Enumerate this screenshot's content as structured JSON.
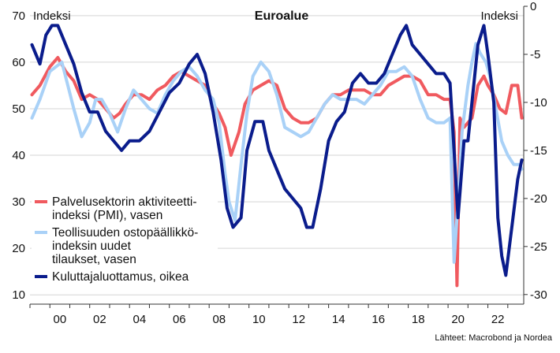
{
  "chart_data": {
    "type": "line",
    "title": "Euroalue",
    "left_axis_label": "Indeksi",
    "right_axis_label": "Indeksi",
    "source": "Lähteet: Macrobond ja Nordea",
    "x_ticks": [
      "00",
      "02",
      "04",
      "06",
      "08",
      "10",
      "12",
      "14",
      "16",
      "18",
      "20",
      "22"
    ],
    "y_left": {
      "ticks": [
        10,
        20,
        30,
        40,
        50,
        60,
        70
      ],
      "lim": [
        8,
        72
      ]
    },
    "y_right": {
      "ticks": [
        -30,
        -25,
        -20,
        -15,
        -10,
        -5,
        0
      ],
      "lim": [
        -31,
        0
      ]
    },
    "xlim": [
      1999.0,
      2023.8
    ],
    "grid": true,
    "legend": "bottom-left",
    "series": [
      {
        "name": "Palvelusektorin aktiviteetti-indeksi (PMI), vasen",
        "legend_lines": [
          "Palvelusektorin aktiviteetti-",
          "indeksi (PMI), vasen"
        ],
        "axis": "left",
        "color": "#f05a5f",
        "x": [
          1999.1,
          1999.5,
          2000.0,
          2000.4,
          2000.8,
          2001.2,
          2001.6,
          2002.0,
          2002.4,
          2002.8,
          2003.2,
          2003.5,
          2003.8,
          2004.2,
          2004.6,
          2005.0,
          2005.4,
          2005.8,
          2006.2,
          2006.6,
          2007.0,
          2007.4,
          2007.8,
          2008.2,
          2008.5,
          2008.8,
          2009.1,
          2009.5,
          2009.8,
          2010.2,
          2010.6,
          2011.0,
          2011.4,
          2011.8,
          2012.2,
          2012.6,
          2013.0,
          2013.4,
          2013.8,
          2014.2,
          2014.6,
          2015.0,
          2015.4,
          2015.8,
          2016.2,
          2016.6,
          2017.0,
          2017.4,
          2017.8,
          2018.2,
          2018.6,
          2019.0,
          2019.4,
          2019.8,
          2020.1,
          2020.3,
          2020.45,
          2020.6,
          2020.8,
          2021.0,
          2021.2,
          2021.5,
          2021.8,
          2022.0,
          2022.3,
          2022.6,
          2022.9,
          2023.2,
          2023.5,
          2023.7
        ],
        "y": [
          53,
          55,
          59,
          61,
          58,
          56,
          52,
          53,
          52,
          50,
          48,
          49,
          51,
          53,
          53,
          52,
          54,
          55,
          57,
          58,
          57,
          56,
          55,
          51,
          49,
          46,
          40,
          45,
          51,
          54,
          55,
          56,
          55,
          50,
          48,
          47,
          47,
          48,
          51,
          53,
          53,
          54,
          54,
          54,
          53,
          53,
          55,
          56,
          57,
          57,
          56,
          53,
          53,
          52,
          52,
          45,
          12,
          48,
          46,
          47,
          48,
          55,
          57,
          55,
          53,
          50,
          49,
          55,
          55,
          48
        ]
      },
      {
        "name": "Teollisuuden ostopäällikkö-indeksin uudet tilaukset, vasen",
        "legend_lines": [
          "Teollisuuden ostopäällikkö-",
          "indeksin uudet",
          "tilaukset, vasen"
        ],
        "axis": "left",
        "color": "#a9d1f7",
        "x": [
          1999.1,
          1999.5,
          2000.0,
          2000.3,
          2000.6,
          2000.9,
          2001.2,
          2001.6,
          2002.0,
          2002.3,
          2002.6,
          2003.0,
          2003.4,
          2003.8,
          2004.2,
          2004.6,
          2005.0,
          2005.4,
          2005.8,
          2006.2,
          2006.6,
          2007.0,
          2007.4,
          2007.8,
          2008.2,
          2008.5,
          2008.8,
          2009.0,
          2009.3,
          2009.6,
          2009.9,
          2010.2,
          2010.6,
          2011.0,
          2011.4,
          2011.8,
          2012.2,
          2012.6,
          2013.0,
          2013.4,
          2013.8,
          2014.2,
          2014.6,
          2015.0,
          2015.4,
          2015.8,
          2016.2,
          2016.6,
          2017.0,
          2017.4,
          2017.8,
          2018.2,
          2018.6,
          2019.0,
          2019.4,
          2019.8,
          2020.1,
          2020.3,
          2020.5,
          2020.7,
          2021.0,
          2021.2,
          2021.4,
          2021.6,
          2021.9,
          2022.1,
          2022.4,
          2022.7,
          2023.0,
          2023.3,
          2023.6,
          2023.7
        ],
        "y": [
          48,
          52,
          58,
          59,
          60,
          55,
          50,
          44,
          47,
          52,
          52,
          49,
          45,
          50,
          54,
          52,
          50,
          49,
          53,
          56,
          58,
          59,
          57,
          54,
          52,
          47,
          36,
          30,
          26,
          38,
          49,
          57,
          60,
          58,
          53,
          46,
          45,
          44,
          45,
          48,
          51,
          53,
          52,
          52,
          52,
          51,
          53,
          55,
          58,
          58,
          59,
          57,
          52,
          48,
          47,
          47,
          48,
          17,
          30,
          45,
          55,
          60,
          64,
          62,
          60,
          57,
          50,
          43,
          40,
          38,
          38,
          37
        ]
      },
      {
        "name": "Kuluttajaluottamus, oikea",
        "legend_lines": [
          "Kuluttajaluottamus, oikea"
        ],
        "axis": "right",
        "color": "#0a1c8c",
        "x": [
          1999.1,
          1999.5,
          1999.8,
          2000.1,
          2000.4,
          2000.8,
          2001.2,
          2001.6,
          2002.0,
          2002.4,
          2002.8,
          2003.2,
          2003.6,
          2004.0,
          2004.5,
          2005.0,
          2005.5,
          2006.0,
          2006.5,
          2007.0,
          2007.4,
          2007.8,
          2008.2,
          2008.6,
          2008.9,
          2009.2,
          2009.6,
          2009.9,
          2010.3,
          2010.7,
          2011.0,
          2011.4,
          2011.8,
          2012.2,
          2012.6,
          2012.9,
          2013.2,
          2013.6,
          2014.0,
          2014.4,
          2014.8,
          2015.2,
          2015.6,
          2016.0,
          2016.4,
          2016.8,
          2017.2,
          2017.6,
          2017.9,
          2018.2,
          2018.6,
          2019.0,
          2019.4,
          2019.8,
          2020.1,
          2020.3,
          2020.5,
          2020.8,
          2021.0,
          2021.3,
          2021.5,
          2021.8,
          2022.0,
          2022.3,
          2022.5,
          2022.7,
          2022.9,
          2023.2,
          2023.5,
          2023.7
        ],
        "y": [
          -4,
          -6,
          -3,
          -2,
          -2,
          -4,
          -6,
          -9,
          -11,
          -11,
          -13,
          -14,
          -15,
          -14,
          -14,
          -13,
          -11,
          -9,
          -8,
          -6,
          -5,
          -7,
          -11,
          -16,
          -21,
          -23,
          -22,
          -15,
          -12,
          -12,
          -15,
          -17,
          -19,
          -20,
          -21,
          -23,
          -23,
          -19,
          -14,
          -12,
          -11,
          -8,
          -7,
          -8,
          -8,
          -7,
          -5,
          -3,
          -2,
          -4,
          -5,
          -6,
          -7,
          -7,
          -8,
          -15,
          -22,
          -14,
          -14,
          -8,
          -4,
          -2,
          -5,
          -10,
          -22,
          -26,
          -28,
          -23,
          -18,
          -16
        ]
      }
    ]
  }
}
